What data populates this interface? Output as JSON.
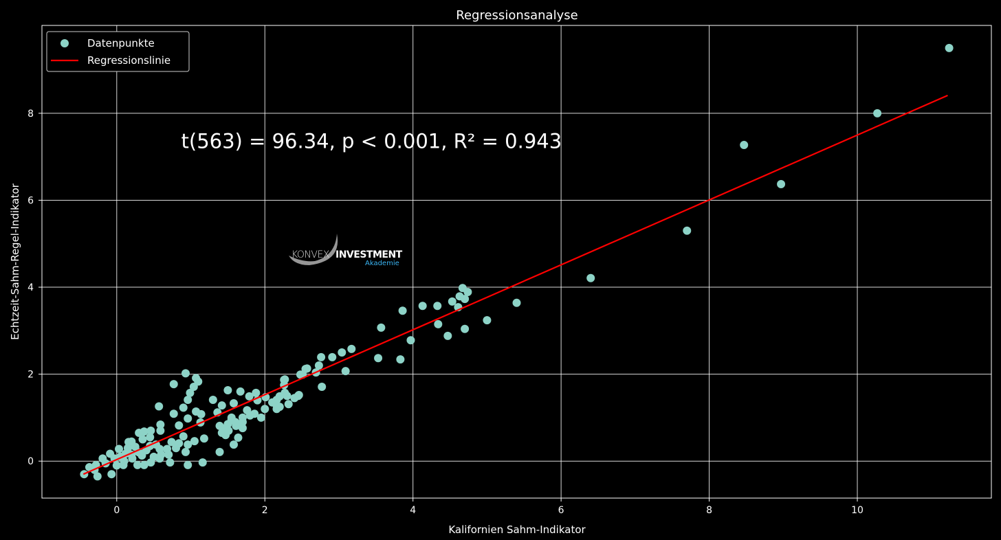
{
  "chart_data": {
    "type": "scatter",
    "title": "Regressionsanalyse",
    "xlabel": "Kalifornien Sahm-Indikator",
    "ylabel": "Echtzeit-Sahm-Regel-Indikator",
    "xlim": [
      -1.01,
      11.81
    ],
    "ylim": [
      -0.85,
      10.02
    ],
    "xticks": [
      0,
      2,
      4,
      6,
      8,
      10
    ],
    "yticks": [
      0,
      2,
      4,
      6,
      8
    ],
    "grid": true,
    "legend": {
      "placement": "top-left",
      "entries": [
        "Datenpunkte",
        "Regressionslinie"
      ]
    },
    "annotation": {
      "text": "t(563) = 96.34, p < 0.001, R² = 0.943",
      "x": 0.87,
      "y": 7.2
    },
    "watermark": {
      "line1a": "KONVEX",
      "line1b": "INVESTMENT",
      "line2": "Akademie"
    },
    "colors": {
      "points": "#8dd3c7",
      "line": "#ff0000",
      "grid": "#ffffff",
      "background": "#000000"
    },
    "regression_line": {
      "x": [
        -0.45,
        11.22
      ],
      "y": [
        -0.3,
        8.41
      ]
    },
    "series": [
      {
        "name": "Datenpunkte",
        "points": [
          [
            11.24,
            9.5
          ],
          [
            10.27,
            8.0
          ],
          [
            8.47,
            7.27
          ],
          [
            8.97,
            6.37
          ],
          [
            7.7,
            5.3
          ],
          [
            6.4,
            4.21
          ],
          [
            5.4,
            3.64
          ],
          [
            5.0,
            3.24
          ],
          [
            4.7,
            3.04
          ],
          [
            4.47,
            2.88
          ],
          [
            4.34,
            3.15
          ],
          [
            4.33,
            3.57
          ],
          [
            4.13,
            3.57
          ],
          [
            3.86,
            3.46
          ],
          [
            3.97,
            2.78
          ],
          [
            3.83,
            2.34
          ],
          [
            3.57,
            3.07
          ],
          [
            3.53,
            2.37
          ],
          [
            4.67,
            3.98
          ],
          [
            4.74,
            3.89
          ],
          [
            4.7,
            3.73
          ],
          [
            4.63,
            3.79
          ],
          [
            4.53,
            3.67
          ],
          [
            4.61,
            3.54
          ],
          [
            3.09,
            2.07
          ],
          [
            3.17,
            2.58
          ],
          [
            3.04,
            2.5
          ],
          [
            2.91,
            2.39
          ],
          [
            2.76,
            2.39
          ],
          [
            2.73,
            2.2
          ],
          [
            2.69,
            2.04
          ],
          [
            2.77,
            1.71
          ],
          [
            2.55,
            2.12
          ],
          [
            2.48,
            1.99
          ],
          [
            2.45,
            1.5
          ],
          [
            2.27,
            1.57
          ],
          [
            2.27,
            1.88
          ],
          [
            2.2,
            1.49
          ],
          [
            2.16,
            1.28
          ],
          [
            2.57,
            2.13
          ],
          [
            2.51,
            1.99
          ],
          [
            2.26,
            1.87
          ],
          [
            2.26,
            1.75
          ],
          [
            2.46,
            1.52
          ],
          [
            2.16,
            1.41
          ],
          [
            2.32,
            1.31
          ],
          [
            2.16,
            1.2
          ],
          [
            2.01,
            1.47
          ],
          [
            1.88,
            1.57
          ],
          [
            1.79,
            1.49
          ],
          [
            1.67,
            1.6
          ],
          [
            1.5,
            1.63
          ],
          [
            1.3,
            1.41
          ],
          [
            1.42,
            1.28
          ],
          [
            1.36,
            1.12
          ],
          [
            1.58,
            1.33
          ],
          [
            1.76,
            1.17
          ],
          [
            1.86,
            1.09
          ],
          [
            1.95,
            1.0
          ],
          [
            1.7,
            1.0
          ],
          [
            1.55,
            0.96
          ],
          [
            1.39,
            0.81
          ],
          [
            1.42,
            0.65
          ],
          [
            1.51,
            0.7
          ],
          [
            1.61,
            0.81
          ],
          [
            1.7,
            0.76
          ],
          [
            1.64,
            0.54
          ],
          [
            1.58,
            0.38
          ],
          [
            1.39,
            0.21
          ],
          [
            1.47,
            0.6
          ],
          [
            0.93,
            2.02
          ],
          [
            1.07,
            1.91
          ],
          [
            1.1,
            1.83
          ],
          [
            1.04,
            1.71
          ],
          [
            0.99,
            1.57
          ],
          [
            0.96,
            1.41
          ],
          [
            0.77,
            1.77
          ],
          [
            0.57,
            1.26
          ],
          [
            0.9,
            1.23
          ],
          [
            1.07,
            1.14
          ],
          [
            1.14,
            1.08
          ],
          [
            0.77,
            1.09
          ],
          [
            0.96,
            0.98
          ],
          [
            1.13,
            0.89
          ],
          [
            0.84,
            0.82
          ],
          [
            0.59,
            0.84
          ],
          [
            0.59,
            0.7
          ],
          [
            0.46,
            0.7
          ],
          [
            0.37,
            0.68
          ],
          [
            0.9,
            0.57
          ],
          [
            1.18,
            0.52
          ],
          [
            1.05,
            0.46
          ],
          [
            0.96,
            0.38
          ],
          [
            0.84,
            0.41
          ],
          [
            0.74,
            0.44
          ],
          [
            0.68,
            0.28
          ],
          [
            0.58,
            0.28
          ],
          [
            0.53,
            0.38
          ],
          [
            0.93,
            0.21
          ],
          [
            1.16,
            -0.03
          ],
          [
            0.96,
            -0.09
          ],
          [
            0.72,
            -0.03
          ],
          [
            0.58,
            0.06
          ],
          [
            0.46,
            -0.03
          ],
          [
            0.25,
            0.33
          ],
          [
            0.16,
            0.44
          ],
          [
            0.03,
            0.28
          ],
          [
            -0.09,
            0.17
          ],
          [
            -0.19,
            0.06
          ],
          [
            -0.28,
            -0.09
          ],
          [
            -0.37,
            -0.14
          ],
          [
            -0.44,
            -0.3
          ],
          [
            -0.26,
            -0.35
          ],
          [
            -0.07,
            -0.3
          ],
          [
            0.09,
            -0.09
          ],
          [
            0.21,
            0.06
          ],
          [
            0.34,
            0.13
          ],
          [
            0.12,
            0.17
          ],
          [
            -0.03,
            0.06
          ],
          [
            0.28,
            -0.09
          ],
          [
            0.37,
            -0.09
          ],
          [
            0.05,
            0.1
          ],
          [
            0.1,
            0.0
          ],
          [
            0.2,
            0.15
          ],
          [
            0.3,
            0.2
          ],
          [
            0.4,
            0.25
          ],
          [
            0.5,
            0.1
          ],
          [
            0.6,
            0.15
          ],
          [
            0.15,
            0.3
          ],
          [
            -0.15,
            -0.05
          ],
          [
            -0.3,
            -0.2
          ],
          [
            0.0,
            -0.1
          ],
          [
            0.45,
            0.35
          ],
          [
            0.7,
            0.15
          ],
          [
            0.8,
            0.3
          ],
          [
            0.2,
            0.45
          ],
          [
            0.35,
            0.5
          ],
          [
            0.3,
            0.65
          ],
          [
            0.45,
            0.55
          ],
          [
            1.6,
            0.9
          ],
          [
            1.5,
            0.85
          ],
          [
            1.7,
            0.9
          ],
          [
            1.45,
            0.75
          ],
          [
            1.55,
            1.0
          ],
          [
            2.4,
            1.45
          ],
          [
            2.3,
            1.5
          ],
          [
            2.1,
            1.35
          ],
          [
            2.2,
            1.25
          ],
          [
            2.0,
            1.2
          ],
          [
            1.8,
            1.05
          ],
          [
            1.9,
            1.4
          ]
        ]
      }
    ]
  }
}
